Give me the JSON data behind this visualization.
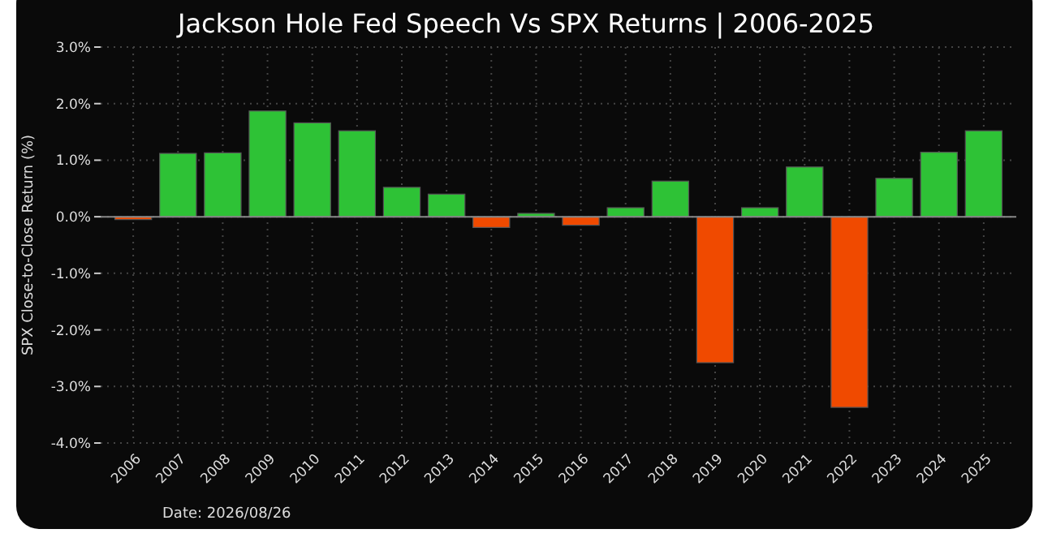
{
  "chart_data": {
    "type": "bar",
    "title": "Jackson Hole Fed Speech Vs SPX Returns | 2006-2025",
    "ylabel": "SPX Close-to-Close Return (%)",
    "categories": [
      "2006",
      "2007",
      "2008",
      "2009",
      "2010",
      "2011",
      "2012",
      "2013",
      "2014",
      "2015",
      "2016",
      "2017",
      "2018",
      "2019",
      "2020",
      "2021",
      "2022",
      "2023",
      "2024",
      "2025"
    ],
    "values": [
      -0.05,
      1.12,
      1.13,
      1.87,
      1.66,
      1.52,
      0.52,
      0.4,
      -0.19,
      0.06,
      -0.15,
      0.16,
      0.63,
      -2.58,
      0.16,
      0.88,
      -3.37,
      0.68,
      1.14,
      1.52
    ],
    "colors": [
      "#f04a00",
      "#2ec236",
      "#2ec236",
      "#2ec236",
      "#2ec236",
      "#2ec236",
      "#2ec236",
      "#2ec236",
      "#f04a00",
      "#2ec236",
      "#f04a00",
      "#2ec236",
      "#2ec236",
      "#f04a00",
      "#2ec236",
      "#2ec236",
      "#f04a00",
      "#2ec236",
      "#2ec236",
      "#2ec236"
    ],
    "ylim": [
      -4,
      3
    ],
    "yticks": [
      {
        "value": -4,
        "label": "-4.0%"
      },
      {
        "value": -3,
        "label": "-3.0%"
      },
      {
        "value": -2,
        "label": "-2.0%"
      },
      {
        "value": -1,
        "label": "-1.0%"
      },
      {
        "value": 0,
        "label": "0.0%"
      },
      {
        "value": 1,
        "label": "1.0%"
      },
      {
        "value": 2,
        "label": "2.0%"
      },
      {
        "value": 3,
        "label": "3.0%"
      }
    ],
    "grid": true,
    "annotations": [
      "Date: 2026/08/26"
    ]
  }
}
